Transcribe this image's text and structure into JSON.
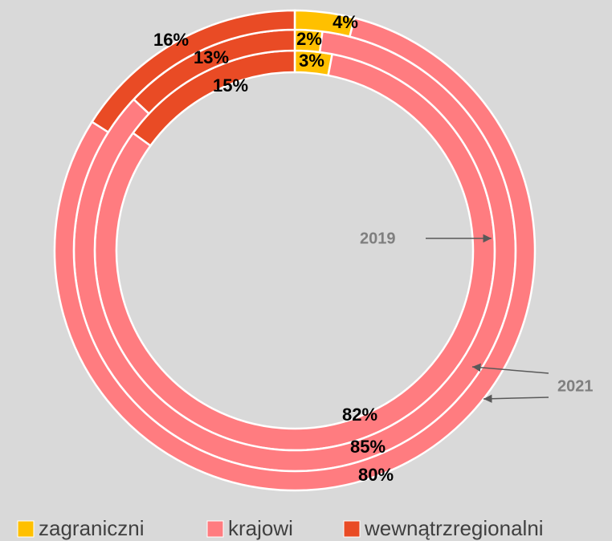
{
  "chart_data": {
    "type": "donut",
    "categories": [
      "zagraniczni",
      "krajowi",
      "wewnątrzregionalni"
    ],
    "colors": [
      "#ffc000",
      "#ff7c80",
      "#e94b25"
    ],
    "rings": [
      {
        "values": [
          3,
          82,
          15
        ],
        "value_labels": [
          "3%",
          "82%",
          "15%"
        ]
      },
      {
        "values": [
          2,
          85,
          13
        ],
        "value_labels": [
          "2%",
          "85%",
          "13%"
        ]
      },
      {
        "values": [
          4,
          80,
          16
        ],
        "value_labels": [
          "4%",
          "80%",
          "16%"
        ]
      }
    ],
    "annotations": [
      "2019",
      "2021"
    ],
    "legend": "bottom"
  }
}
